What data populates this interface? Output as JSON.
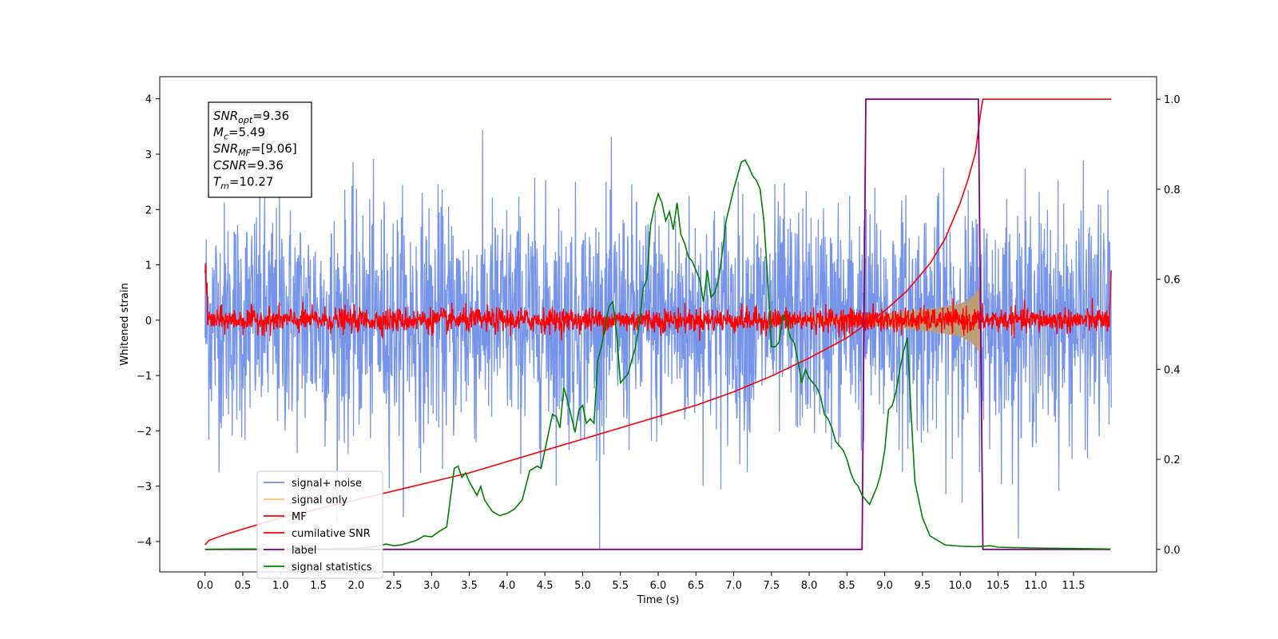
{
  "chart_data": {
    "type": "line",
    "xlabel": "Time (s)",
    "ylabel_left": "Whitened strain",
    "ylabel_right": "",
    "xlim": [
      -0.6,
      12.6
    ],
    "ylim_left": [
      -4.55,
      4.4
    ],
    "ylim_right": [
      -0.05,
      1.05
    ],
    "x_ticks": [
      0.0,
      0.5,
      1.0,
      1.5,
      2.0,
      2.5,
      3.0,
      3.5,
      4.0,
      4.5,
      5.0,
      5.5,
      6.0,
      6.5,
      7.0,
      7.5,
      8.0,
      8.5,
      9.0,
      9.5,
      10.0,
      10.5,
      11.0,
      11.5
    ],
    "x_tick_labels": [
      "0.0",
      "0.5",
      "1.0",
      "1.5",
      "2.0",
      "2.5",
      "3.0",
      "3.5",
      "4.0",
      "4.5",
      "5.0",
      "5.5",
      "6.0",
      "6.5",
      "7.0",
      "7.5",
      "8.0",
      "8.5",
      "9.0",
      "9.5",
      "10.0",
      "10.5",
      "11.0",
      "11.5"
    ],
    "y_ticks_left": [
      -4,
      -3,
      -2,
      -1,
      0,
      1,
      2,
      3,
      4
    ],
    "y_tick_labels_left": [
      "−4",
      "−3",
      "−2",
      "−1",
      "0",
      "1",
      "2",
      "3",
      "4"
    ],
    "y_ticks_right": [
      0.0,
      0.2,
      0.4,
      0.6,
      0.8,
      1.0
    ],
    "y_tick_labels_right": [
      "0.0",
      "0.2",
      "0.4",
      "0.6",
      "0.8",
      "1.0"
    ],
    "grid": false,
    "legend_position": "lower-left",
    "annotation": [
      {
        "sym": "SNR",
        "sub": "opt",
        "text": "=9.36"
      },
      {
        "sym": "M",
        "sub": "c",
        "text": "=5.49"
      },
      {
        "sym": "SNR",
        "sub": "MF",
        "text": "=[9.06]"
      },
      {
        "sym": "CSNR",
        "sub": "",
        "text": "=9.36"
      },
      {
        "sym": "T",
        "sub": "m",
        "text": "=10.27"
      }
    ],
    "series": [
      {
        "name": "signal+ noise",
        "axis": "left",
        "color": "#6f8ee8",
        "noise_std": 1.05,
        "x_start": 0.0,
        "x_end": 12.0
      },
      {
        "name": "signal only",
        "axis": "left",
        "color": "#f5c46a",
        "chirp_end": 10.27,
        "amplitude_x": [
          8.0,
          8.5,
          9.0,
          9.5,
          9.8,
          10.0,
          10.1,
          10.2,
          10.27
        ],
        "amplitude_y": [
          0.05,
          0.08,
          0.12,
          0.18,
          0.24,
          0.3,
          0.36,
          0.48,
          0.62
        ]
      },
      {
        "name": "MF",
        "axis": "left",
        "color": "#ff0000",
        "noise_std": 0.11,
        "x_start": 0.0,
        "x_end": 12.0
      },
      {
        "name": "cumilative SNR",
        "axis": "right",
        "color": "#ff0000",
        "x": [
          0.0,
          0.05,
          0.3,
          0.7,
          1.0,
          1.5,
          2.0,
          2.5,
          3.0,
          3.5,
          4.0,
          4.5,
          5.0,
          5.5,
          6.0,
          6.5,
          7.0,
          7.5,
          8.0,
          8.5,
          9.0,
          9.3,
          9.6,
          9.8,
          10.0,
          10.1,
          10.2,
          10.27,
          10.3,
          12.0
        ],
        "y": [
          0.01,
          0.02,
          0.035,
          0.055,
          0.07,
          0.09,
          0.11,
          0.13,
          0.15,
          0.17,
          0.195,
          0.22,
          0.245,
          0.27,
          0.295,
          0.32,
          0.35,
          0.385,
          0.425,
          0.47,
          0.53,
          0.575,
          0.635,
          0.69,
          0.77,
          0.82,
          0.88,
          0.97,
          1.0,
          1.0
        ]
      },
      {
        "name": "label",
        "axis": "right",
        "color": "#800080",
        "x": [
          0.0,
          8.7,
          8.75,
          10.24,
          10.3,
          11.99
        ],
        "y": [
          0.0,
          0.0,
          1.0,
          1.0,
          0.0,
          0.0
        ]
      },
      {
        "name": "signal statistics",
        "axis": "right",
        "color": "#008000",
        "x": [
          0.0,
          0.5,
          1.0,
          1.5,
          2.0,
          2.2,
          2.3,
          2.4,
          2.5,
          2.6,
          2.7,
          2.8,
          2.9,
          3.0,
          3.1,
          3.2,
          3.3,
          3.35,
          3.4,
          3.45,
          3.5,
          3.6,
          3.65,
          3.7,
          3.8,
          3.9,
          4.0,
          4.1,
          4.2,
          4.3,
          4.4,
          4.45,
          4.5,
          4.6,
          4.65,
          4.7,
          4.75,
          4.8,
          4.9,
          4.95,
          5.0,
          5.05,
          5.1,
          5.15,
          5.2,
          5.25,
          5.3,
          5.35,
          5.4,
          5.45,
          5.5,
          5.6,
          5.65,
          5.7,
          5.75,
          5.8,
          5.85,
          5.9,
          5.95,
          6.0,
          6.05,
          6.1,
          6.15,
          6.2,
          6.25,
          6.3,
          6.35,
          6.4,
          6.45,
          6.5,
          6.55,
          6.6,
          6.65,
          6.7,
          6.75,
          6.8,
          6.85,
          6.9,
          7.0,
          7.05,
          7.1,
          7.15,
          7.2,
          7.25,
          7.3,
          7.35,
          7.4,
          7.45,
          7.5,
          7.55,
          7.6,
          7.65,
          7.7,
          7.75,
          7.8,
          7.85,
          7.9,
          7.95,
          8.0,
          8.05,
          8.1,
          8.15,
          8.2,
          8.25,
          8.3,
          8.35,
          8.4,
          8.45,
          8.5,
          8.55,
          8.6,
          8.65,
          8.7,
          8.75,
          8.8,
          8.85,
          8.9,
          8.95,
          9.0,
          9.05,
          9.1,
          9.15,
          9.2,
          9.25,
          9.3,
          9.35,
          9.4,
          9.5,
          9.6,
          9.7,
          9.8,
          10.0,
          10.2,
          10.3,
          10.4,
          10.5,
          11.0,
          11.5,
          11.99
        ],
        "y": [
          0.0,
          0.001,
          0.001,
          0.001,
          0.002,
          0.005,
          0.008,
          0.012,
          0.008,
          0.01,
          0.015,
          0.02,
          0.03,
          0.028,
          0.04,
          0.05,
          0.18,
          0.185,
          0.16,
          0.17,
          0.15,
          0.12,
          0.14,
          0.11,
          0.085,
          0.075,
          0.08,
          0.09,
          0.11,
          0.175,
          0.185,
          0.18,
          0.22,
          0.3,
          0.295,
          0.27,
          0.36,
          0.33,
          0.26,
          0.31,
          0.32,
          0.28,
          0.29,
          0.28,
          0.42,
          0.45,
          0.5,
          0.54,
          0.55,
          0.48,
          0.37,
          0.39,
          0.42,
          0.45,
          0.5,
          0.58,
          0.6,
          0.72,
          0.76,
          0.79,
          0.77,
          0.73,
          0.75,
          0.71,
          0.77,
          0.7,
          0.68,
          0.65,
          0.64,
          0.62,
          0.6,
          0.55,
          0.62,
          0.56,
          0.57,
          0.6,
          0.66,
          0.73,
          0.8,
          0.83,
          0.86,
          0.865,
          0.85,
          0.83,
          0.82,
          0.8,
          0.73,
          0.6,
          0.45,
          0.45,
          0.46,
          0.52,
          0.51,
          0.47,
          0.46,
          0.42,
          0.37,
          0.4,
          0.38,
          0.37,
          0.36,
          0.34,
          0.3,
          0.29,
          0.27,
          0.24,
          0.23,
          0.22,
          0.2,
          0.17,
          0.15,
          0.14,
          0.12,
          0.11,
          0.1,
          0.12,
          0.14,
          0.17,
          0.22,
          0.31,
          0.32,
          0.35,
          0.4,
          0.44,
          0.47,
          0.3,
          0.15,
          0.07,
          0.03,
          0.02,
          0.01,
          0.007,
          0.006,
          0.007,
          0.008,
          0.005,
          0.003,
          0.002,
          0.001
        ]
      }
    ]
  }
}
